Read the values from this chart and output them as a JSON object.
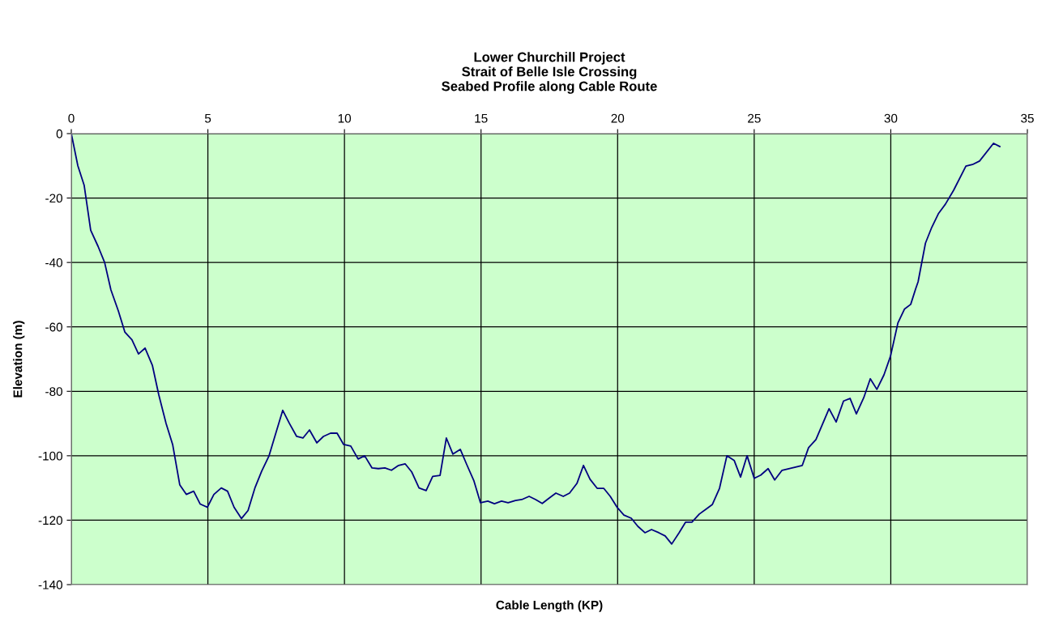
{
  "chart_data": {
    "type": "line",
    "title": "Lower Churchill Project\nStrait of Belle Isle Crossing\nSeabed Profile along Cable Route",
    "xlabel": "Cable Length (KP)",
    "ylabel": "Elevation (m)",
    "grid": true,
    "legend": false,
    "marker": "none",
    "line_style": "solid",
    "xlim": [
      0,
      35
    ],
    "xticks": [
      0,
      5,
      10,
      15,
      20,
      25,
      30,
      35
    ],
    "ylim": [
      -140,
      0
    ],
    "yticks": [
      -140,
      -120,
      -100,
      -80,
      -60,
      -40,
      -20,
      0
    ],
    "series": [
      {
        "color": "#000080",
        "x": [
          0,
          0.24,
          0.47,
          0.71,
          0.98,
          1.22,
          1.45,
          1.72,
          1.96,
          2.22,
          2.46,
          2.7,
          2.97,
          3.2,
          3.47,
          3.71,
          3.97,
          4.21,
          4.48,
          4.72,
          4.98,
          5.22,
          5.49,
          5.72,
          5.96,
          6.23,
          6.47,
          6.73,
          6.97,
          7.24,
          7.48,
          7.74,
          7.98,
          8.25,
          8.48,
          8.72,
          8.99,
          9.23,
          9.49,
          9.73,
          9.97,
          10.23,
          10.5,
          10.74,
          11.01,
          11.24,
          11.48,
          11.72,
          11.98,
          12.22,
          12.46,
          12.73,
          12.99,
          13.23,
          13.5,
          13.73,
          13.97,
          14.24,
          14.48,
          14.74,
          14.98,
          15.25,
          15.49,
          15.75,
          15.99,
          16.26,
          16.49,
          16.76,
          17.0,
          17.24,
          17.5,
          17.74,
          18.01,
          18.24,
          18.51,
          18.75,
          18.99,
          19.25,
          19.49,
          19.73,
          19.99,
          20.23,
          20.5,
          20.74,
          21.0,
          21.24,
          21.51,
          21.74,
          21.98,
          22.25,
          22.49,
          22.72,
          22.99,
          23.23,
          23.47,
          23.73,
          24.0,
          24.27,
          24.5,
          24.74,
          25.0,
          25.24,
          25.51,
          25.75,
          26.02,
          26.76,
          26.99,
          27.26,
          27.5,
          27.74,
          28.0,
          28.27,
          28.51,
          28.74,
          29.01,
          29.25,
          29.49,
          29.75,
          29.99,
          30.26,
          30.5,
          30.73,
          30.91,
          31.0,
          31.27,
          31.5,
          31.74,
          32.0,
          32.3,
          32.75,
          32.99,
          33.25,
          33.76,
          33.99
        ],
        "values": [
          0,
          -10,
          -16,
          -30,
          -35,
          -40,
          -48.5,
          -55,
          -61.6,
          -64,
          -68.4,
          -66.6,
          -72,
          -81,
          -90,
          -96.5,
          -109,
          -112,
          -111,
          -115,
          -116,
          -112,
          -110,
          -111,
          -116,
          -119.5,
          -117,
          -109.8,
          -104.8,
          -100,
          -93.2,
          -85.9,
          -89.9,
          -94,
          -94.5,
          -92,
          -96,
          -94,
          -93,
          -93,
          -96.5,
          -97,
          -101,
          -100,
          -103.8,
          -104,
          -103.8,
          -104.5,
          -103,
          -102.5,
          -105,
          -110,
          -110.8,
          -106.4,
          -106.1,
          -94.5,
          -99.5,
          -98,
          -102.8,
          -107.8,
          -114.6,
          -114.1,
          -114.9,
          -114.1,
          -114.6,
          -113.9,
          -113.6,
          -112.6,
          -113.6,
          -114.8,
          -113.1,
          -111.6,
          -112.6,
          -111.6,
          -108.6,
          -103,
          -107.3,
          -110.1,
          -110.1,
          -112.6,
          -116.1,
          -118.4,
          -119.4,
          -121.9,
          -123.9,
          -122.9,
          -123.9,
          -124.9,
          -127.4,
          -123.9,
          -120.6,
          -120.6,
          -118.1,
          -116.6,
          -115.1,
          -110.1,
          -100,
          -101.5,
          -106.6,
          -100,
          -107,
          -106,
          -104,
          -107.5,
          -104.5,
          -103,
          -97.5,
          -95,
          -90.2,
          -85.4,
          -89.5,
          -83,
          -82.2,
          -87,
          -82,
          -76.1,
          -79.4,
          -74.9,
          -69.1,
          -58.8,
          -54.5,
          -53,
          -48.2,
          -46,
          -34,
          -29.1,
          -24.9,
          -21.9,
          -17.6,
          -10.1,
          -9.6,
          -8.5,
          -3,
          -4
        ]
      }
    ]
  }
}
